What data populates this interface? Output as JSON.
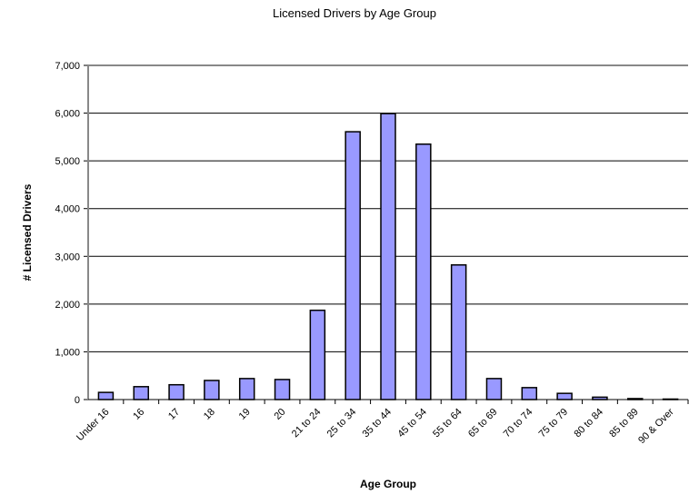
{
  "chart_data": {
    "type": "bar",
    "title": "Licensed Drivers by Age Group",
    "x_label": "Age Group",
    "y_label": "# Licensed Drivers",
    "categories": [
      "Under 16",
      "16",
      "17",
      "18",
      "19",
      "20",
      "21 to 24",
      "25 to 34",
      "35 to 44",
      "45 to 54",
      "55 to 64",
      "65 to 69",
      "70 to 74",
      "75 to 79",
      "80 to 84",
      "85 to 89",
      "90 & Over"
    ],
    "values": [
      150,
      270,
      310,
      400,
      440,
      420,
      1870,
      5610,
      5990,
      5350,
      2820,
      440,
      250,
      130,
      50,
      20,
      10
    ],
    "color": "#9999ff",
    "ylim": [
      0,
      7000
    ],
    "yticks": [
      0,
      {
        "value": 1000,
        "label": "1,000"
      },
      {
        "value": 2000,
        "label": "2,000"
      },
      {
        "value": 3000,
        "label": "3,000"
      },
      {
        "value": 4000,
        "label": "4,000"
      },
      {
        "value": 5000,
        "label": "5,000"
      },
      {
        "value": 6000,
        "label": "6,000"
      },
      {
        "value": 7000,
        "label": "7,000"
      }
    ],
    "grid": true
  }
}
